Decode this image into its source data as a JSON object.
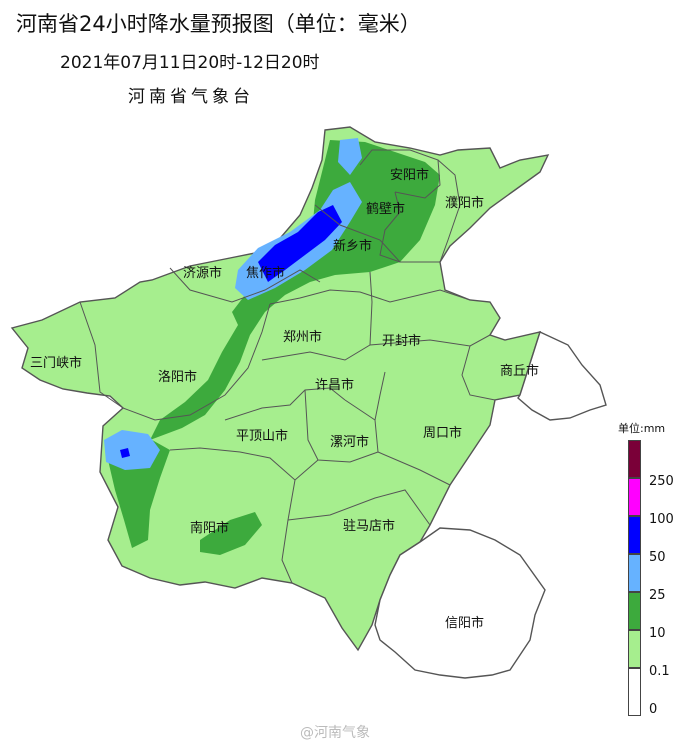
{
  "title": "河南省24小时降水量预报图（单位：毫米）",
  "subtitle": "2021年07月11日20时-12日20时",
  "issuer": "河南省气象台",
  "cities": {
    "anyang": "安阳市",
    "hebi": "鹤壁市",
    "puyang": "濮阳市",
    "xinxiang": "新乡市",
    "jiaozuo": "焦作市",
    "jiyuan": "济源市",
    "sanmenxia": "三门峡市",
    "luoyang": "洛阳市",
    "zhengzhou": "郑州市",
    "kaifeng": "开封市",
    "shangqiu": "商丘市",
    "xuchang": "许昌市",
    "pingdingshan": "平顶山市",
    "luohe": "漯河市",
    "zhoukou": "周口市",
    "nanyang": "南阳市",
    "zhumadian": "驻马店市",
    "xinyang": "信阳市"
  },
  "legend": {
    "unit": "单位:mm",
    "classes": [
      {
        "label": "250",
        "color": "#7a0038"
      },
      {
        "label": "100",
        "color": "#ff00ff"
      },
      {
        "label": "50",
        "color": "#0000ff"
      },
      {
        "label": "25",
        "color": "#66b2ff"
      },
      {
        "label": "10",
        "color": "#3daa3d"
      },
      {
        "label": "0.1",
        "color": "#a6ee8e"
      },
      {
        "label": "0",
        "color": "#ffffff"
      }
    ]
  },
  "colors": {
    "light_rain": "#a6ee8e",
    "moderate_rain": "#3daa3d",
    "heavy_rain": "#66b2ff",
    "rainstorm": "#0000ff",
    "no_rain": "#ffffff",
    "boundary": "#555555"
  },
  "watermark": "@河南气象"
}
